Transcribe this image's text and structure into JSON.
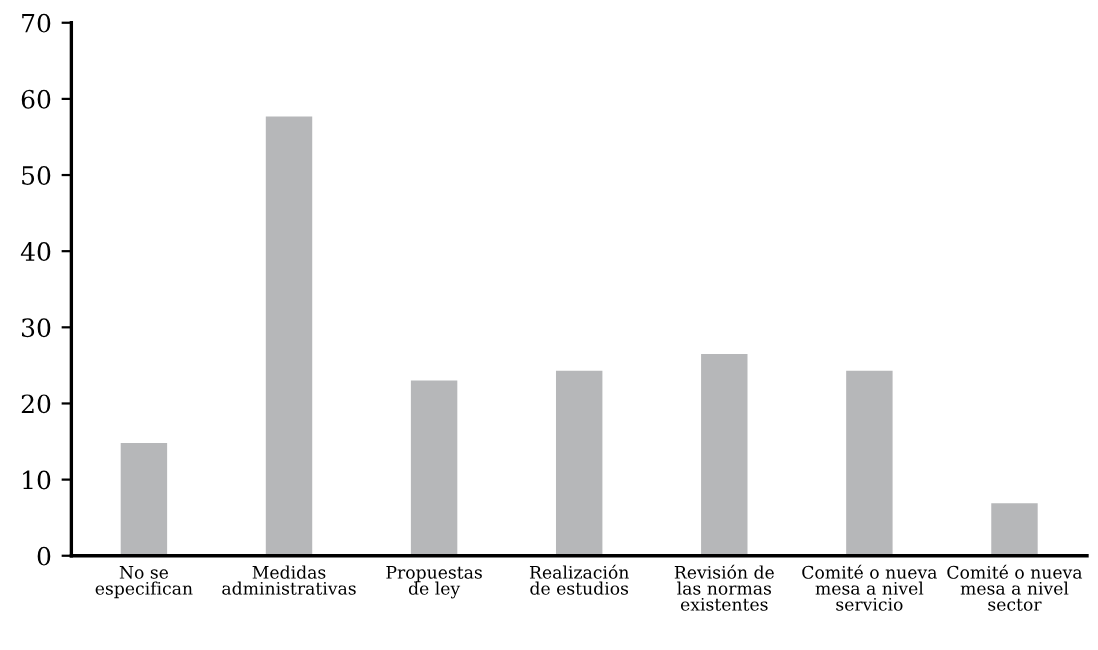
{
  "chart_data": {
    "type": "bar",
    "categories": [
      "No se\nespecifican",
      "Medidas\nadministrativas",
      "Propuestas\nde ley",
      "Realización\nde estudios",
      "Revisión de\nlas normas\nexistentes",
      "Comité o nueva\nmesa a nivel\nservicio",
      "Comité o nueva\nmesa a nivel\nsector"
    ],
    "values": [
      14.8,
      57.7,
      23.0,
      24.3,
      26.5,
      24.3,
      6.9
    ],
    "color": "#b6b7b9",
    "ylim": [
      0,
      70
    ],
    "yticks": [
      0,
      10,
      20,
      30,
      40,
      50,
      60,
      70
    ],
    "grid": false
  }
}
